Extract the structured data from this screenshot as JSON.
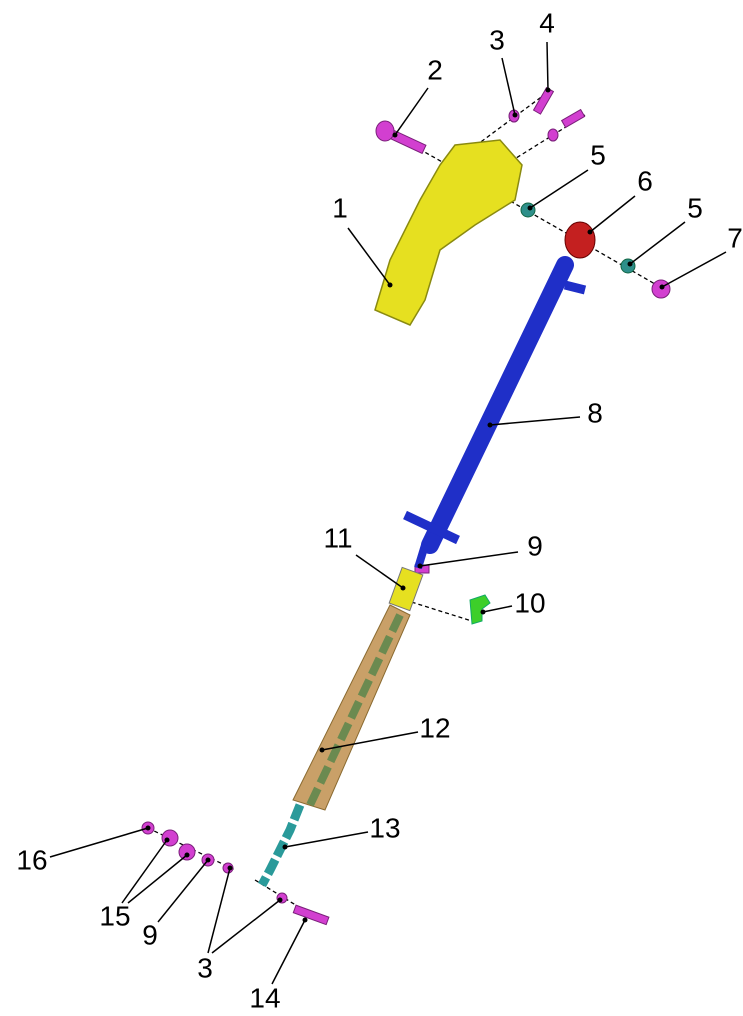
{
  "callouts": [
    {
      "label": "1"
    },
    {
      "label": "2"
    },
    {
      "label": "3"
    },
    {
      "label": "4"
    },
    {
      "label": "5"
    },
    {
      "label": "6"
    },
    {
      "label": "5"
    },
    {
      "label": "7"
    },
    {
      "label": "8"
    },
    {
      "label": "9"
    },
    {
      "label": "11"
    },
    {
      "label": "10"
    },
    {
      "label": "12"
    },
    {
      "label": "13"
    },
    {
      "label": "16"
    },
    {
      "label": "15"
    },
    {
      "label": "9"
    },
    {
      "label": "3"
    },
    {
      "label": "14"
    }
  ]
}
